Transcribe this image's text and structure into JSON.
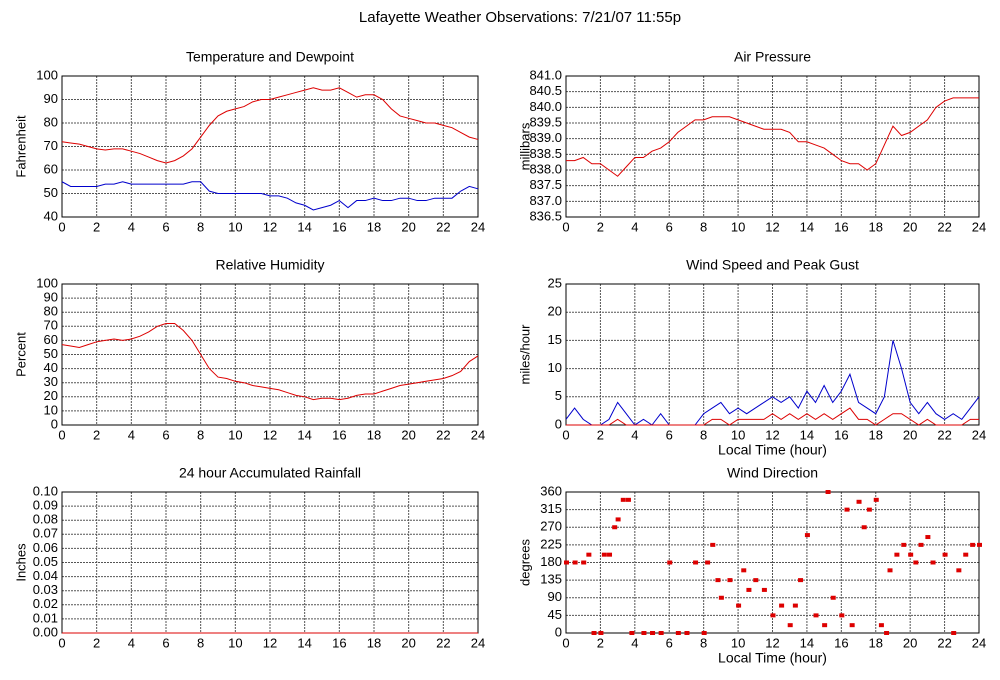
{
  "title": "Lafayette Weather Observations: 7/21/07 11:55p",
  "chart_data": [
    {
      "type": "line",
      "title": "Temperature and Dewpoint",
      "y_label": "Fahrenheit",
      "x": [
        0,
        0.5,
        1,
        1.5,
        2,
        2.5,
        3,
        3.5,
        4,
        4.5,
        5,
        5.5,
        6,
        6.5,
        7,
        7.5,
        8,
        8.5,
        9,
        9.5,
        10,
        10.5,
        11,
        11.5,
        12,
        12.5,
        13,
        13.5,
        14,
        14.5,
        15,
        15.5,
        16,
        16.5,
        17,
        17.5,
        18,
        18.5,
        19,
        19.5,
        20,
        20.5,
        21,
        21.5,
        22,
        22.5,
        23,
        23.5,
        24
      ],
      "series": [
        {
          "color": "#dd0000",
          "values": [
            72,
            71.5,
            71,
            70,
            69,
            68.5,
            69,
            69,
            68,
            67,
            65.5,
            64,
            63,
            64,
            66,
            69,
            74,
            79,
            83,
            85,
            86,
            87,
            89,
            90,
            90,
            91,
            92,
            93,
            94,
            95,
            94,
            94,
            95,
            93,
            91,
            92,
            92,
            90,
            86,
            83,
            82,
            81,
            80,
            80,
            79,
            78,
            76,
            74,
            73
          ]
        },
        {
          "color": "#0000cc",
          "values": [
            55,
            53,
            53,
            53,
            53,
            54,
            54,
            55,
            54,
            54,
            54,
            54,
            54,
            54,
            54,
            55,
            55,
            51,
            50,
            50,
            50,
            50,
            50,
            50,
            49,
            49,
            48,
            46,
            45,
            43,
            44,
            45,
            47,
            44,
            47,
            47,
            48,
            47,
            47,
            48,
            48,
            47,
            47,
            48,
            48,
            48,
            51,
            53,
            52
          ]
        }
      ],
      "xlim": [
        0,
        24
      ],
      "xticks": [
        0,
        2,
        4,
        6,
        8,
        10,
        12,
        14,
        16,
        18,
        20,
        22,
        24
      ],
      "ylim": [
        40,
        100
      ],
      "yticks": [
        40,
        50,
        60,
        70,
        80,
        90,
        100
      ],
      "grid": true
    },
    {
      "type": "line",
      "title": "Air Pressure",
      "y_label": "millibars",
      "x": [
        0,
        0.5,
        1,
        1.5,
        2,
        2.5,
        3,
        3.5,
        4,
        4.5,
        5,
        5.5,
        6,
        6.5,
        7,
        7.5,
        8,
        8.5,
        9,
        9.5,
        10,
        10.5,
        11,
        11.5,
        12,
        12.5,
        13,
        13.5,
        14,
        14.5,
        15,
        15.5,
        16,
        16.5,
        17,
        17.5,
        18,
        18.5,
        19,
        19.5,
        20,
        20.5,
        21,
        21.5,
        22,
        22.5,
        23,
        23.5,
        24
      ],
      "series": [
        {
          "color": "#dd0000",
          "values": [
            838.3,
            838.3,
            838.4,
            838.2,
            838.2,
            838.0,
            837.8,
            838.1,
            838.4,
            838.4,
            838.6,
            838.7,
            838.9,
            839.2,
            839.4,
            839.6,
            839.6,
            839.7,
            839.7,
            839.7,
            839.6,
            839.5,
            839.4,
            839.3,
            839.3,
            839.3,
            839.2,
            838.9,
            838.9,
            838.8,
            838.7,
            838.5,
            838.3,
            838.2,
            838.2,
            838.0,
            838.2,
            838.8,
            839.4,
            839.1,
            839.2,
            839.4,
            839.6,
            840.0,
            840.2,
            840.3,
            840.3,
            840.3,
            840.3
          ]
        }
      ],
      "xlim": [
        0,
        24
      ],
      "xticks": [
        0,
        2,
        4,
        6,
        8,
        10,
        12,
        14,
        16,
        18,
        20,
        22,
        24
      ],
      "ylim": [
        836.5,
        841
      ],
      "yticks": [
        836.5,
        {
          "value": 837,
          "label": "837.0"
        },
        837.5,
        {
          "value": 838,
          "label": "838.0"
        },
        838.5,
        {
          "value": 839,
          "label": "839.0"
        },
        839.5,
        {
          "value": 840,
          "label": "840.0"
        },
        840.5,
        {
          "value": 841,
          "label": "841.0"
        }
      ],
      "grid": true
    },
    {
      "type": "line",
      "title": "Relative Humidity",
      "y_label": "Percent",
      "x": [
        0,
        0.5,
        1,
        1.5,
        2,
        2.5,
        3,
        3.5,
        4,
        4.5,
        5,
        5.5,
        6,
        6.5,
        7,
        7.5,
        8,
        8.5,
        9,
        9.5,
        10,
        10.5,
        11,
        11.5,
        12,
        12.5,
        13,
        13.5,
        14,
        14.5,
        15,
        15.5,
        16,
        16.5,
        17,
        17.5,
        18,
        18.5,
        19,
        19.5,
        20,
        20.5,
        21,
        21.5,
        22,
        22.5,
        23,
        23.5,
        24
      ],
      "series": [
        {
          "color": "#dd0000",
          "values": [
            57,
            56,
            55,
            57,
            59,
            60,
            61,
            60,
            61,
            63,
            66,
            70,
            72,
            72,
            67,
            60,
            50,
            40,
            34,
            33,
            31,
            30,
            28,
            27,
            26,
            25,
            23,
            21,
            20,
            18,
            19,
            19,
            18,
            19,
            21,
            22,
            22,
            24,
            26,
            28,
            29,
            30,
            31,
            32,
            33,
            35,
            38,
            45,
            49
          ]
        }
      ],
      "xlim": [
        0,
        24
      ],
      "xticks": [
        0,
        2,
        4,
        6,
        8,
        10,
        12,
        14,
        16,
        18,
        20,
        22,
        24
      ],
      "ylim": [
        0,
        100
      ],
      "yticks": [
        0,
        10,
        20,
        30,
        40,
        50,
        60,
        70,
        80,
        90,
        100
      ],
      "grid": true
    },
    {
      "type": "line",
      "title": "Wind Speed and Peak Gust",
      "y_label": "miles/hour",
      "x_label": "Local Time (hour)",
      "x": [
        0,
        0.5,
        1,
        1.5,
        2,
        2.5,
        3,
        3.5,
        4,
        4.5,
        5,
        5.5,
        6,
        6.5,
        7,
        7.5,
        8,
        8.5,
        9,
        9.5,
        10,
        10.5,
        11,
        11.5,
        12,
        12.5,
        13,
        13.5,
        14,
        14.5,
        15,
        15.5,
        16,
        16.5,
        17,
        17.5,
        18,
        18.5,
        19,
        19.5,
        20,
        20.5,
        21,
        21.5,
        22,
        22.5,
        23,
        23.5,
        24
      ],
      "series": [
        {
          "color": "#0000cc",
          "values": [
            1,
            3,
            1,
            0,
            0,
            1,
            4,
            2,
            0,
            1,
            0,
            2,
            0,
            0,
            0,
            0,
            2,
            3,
            4,
            2,
            3,
            2,
            3,
            4,
            5,
            4,
            5,
            3,
            6,
            4,
            7,
            4,
            6,
            9,
            4,
            3,
            2,
            5,
            15,
            10,
            4,
            2,
            4,
            2,
            1,
            2,
            1,
            3,
            5
          ]
        },
        {
          "color": "#dd0000",
          "values": [
            0,
            0,
            0,
            0,
            0,
            0,
            1,
            0,
            0,
            0,
            0,
            0,
            0,
            0,
            0,
            0,
            0,
            1,
            1,
            0,
            1,
            1,
            1,
            1,
            2,
            1,
            2,
            1,
            2,
            1,
            2,
            1,
            2,
            3,
            1,
            1,
            0,
            1,
            2,
            2,
            1,
            0,
            1,
            0,
            0,
            0,
            0,
            1,
            1
          ]
        }
      ],
      "xlim": [
        0,
        24
      ],
      "xticks": [
        0,
        2,
        4,
        6,
        8,
        10,
        12,
        14,
        16,
        18,
        20,
        22,
        24
      ],
      "ylim": [
        0,
        25
      ],
      "yticks": [
        0,
        5,
        10,
        15,
        20,
        25
      ],
      "grid": true
    },
    {
      "type": "line",
      "title": "24 hour Accumulated Rainfall",
      "y_label": "Inches",
      "x": [
        0,
        24
      ],
      "series": [
        {
          "color": "#dd0000",
          "values": [
            0,
            0
          ]
        }
      ],
      "xlim": [
        0,
        24
      ],
      "xticks": [
        0,
        2,
        4,
        6,
        8,
        10,
        12,
        14,
        16,
        18,
        20,
        22,
        24
      ],
      "ylim": [
        0,
        0.1
      ],
      "yticks": [
        {
          "value": 0,
          "label": "0.00"
        },
        0.01,
        0.02,
        0.03,
        0.04,
        0.05,
        0.06,
        0.07,
        0.08,
        0.09,
        {
          "value": 0.1,
          "label": "0.10"
        }
      ],
      "grid": true
    },
    {
      "type": "scatter",
      "title": "Wind Direction",
      "y_label": "degrees",
      "x_label": "Local Time (hour)",
      "x": [
        0,
        0.5,
        1,
        1.3,
        1.6,
        2,
        2.2,
        2.5,
        2.8,
        3,
        3.3,
        3.6,
        3.8,
        4.5,
        5,
        5.5,
        6,
        6.5,
        7,
        7.5,
        8,
        8.2,
        8.5,
        8.8,
        9,
        9.5,
        10,
        10.3,
        10.6,
        11,
        11.5,
        12,
        12.5,
        13,
        13.3,
        13.6,
        14,
        14.5,
        15,
        15.2,
        15.5,
        16,
        16.3,
        16.6,
        17,
        17.3,
        17.6,
        18,
        18.3,
        18.6,
        18.8,
        19.2,
        19.6,
        20,
        20.3,
        20.6,
        21,
        21.3,
        22,
        22.5,
        22.8,
        23.2,
        23.6,
        24
      ],
      "series": [
        {
          "color": "#dd0000",
          "values": [
            180,
            180,
            180,
            200,
            0,
            0,
            200,
            200,
            270,
            290,
            340,
            340,
            0,
            0,
            0,
            0,
            180,
            0,
            0,
            180,
            0,
            180,
            225,
            135,
            90,
            135,
            70,
            160,
            110,
            135,
            110,
            45,
            70,
            20,
            70,
            135,
            250,
            45,
            20,
            360,
            90,
            45,
            315,
            20,
            335,
            270,
            315,
            340,
            20,
            0,
            160,
            200,
            225,
            200,
            180,
            225,
            245,
            180,
            200,
            0,
            160,
            200,
            225,
            225
          ]
        }
      ],
      "xlim": [
        0,
        24
      ],
      "xticks": [
        0,
        2,
        4,
        6,
        8,
        10,
        12,
        14,
        16,
        18,
        20,
        22,
        24
      ],
      "ylim": [
        0,
        360
      ],
      "yticks": [
        0,
        45,
        90,
        135,
        180,
        225,
        270,
        315,
        360
      ],
      "grid": true
    }
  ]
}
